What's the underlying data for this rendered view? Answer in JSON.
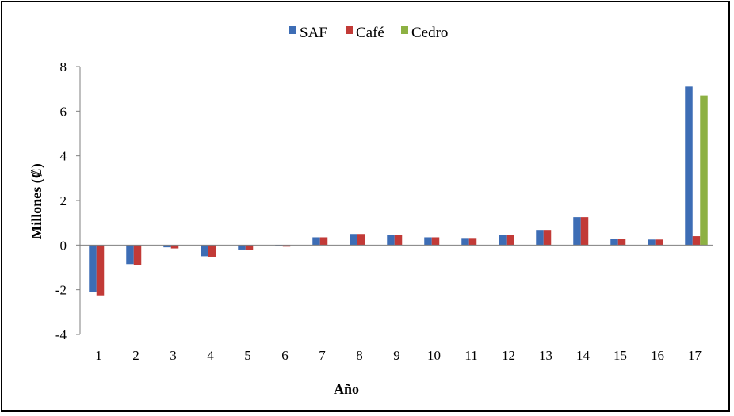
{
  "chart_data": {
    "type": "bar",
    "xlabel": "Año",
    "ylabel": "Millones (₡)",
    "ylim": [
      -4,
      8
    ],
    "yticks": [
      -4,
      -2,
      0,
      2,
      4,
      6,
      8
    ],
    "grid": false,
    "legend_position": "top",
    "categories": [
      "1",
      "2",
      "3",
      "4",
      "5",
      "6",
      "7",
      "8",
      "9",
      "10",
      "11",
      "12",
      "13",
      "14",
      "15",
      "16",
      "17"
    ],
    "series": [
      {
        "name": "SAF",
        "color": "#3d6db5",
        "values": [
          -2.1,
          -0.85,
          -0.1,
          -0.5,
          -0.2,
          -0.05,
          0.35,
          0.5,
          0.47,
          0.35,
          0.32,
          0.46,
          0.68,
          1.25,
          0.28,
          0.25,
          7.1
        ]
      },
      {
        "name": "Café",
        "color": "#c23a37",
        "values": [
          -2.25,
          -0.9,
          -0.15,
          -0.52,
          -0.22,
          -0.07,
          0.35,
          0.5,
          0.47,
          0.35,
          0.32,
          0.46,
          0.68,
          1.25,
          0.28,
          0.25,
          0.4
        ]
      },
      {
        "name": "Cedro",
        "color": "#8db143",
        "values": [
          0,
          0,
          0,
          0,
          0,
          0,
          0,
          0,
          0,
          0,
          0,
          0,
          0,
          0,
          0,
          0,
          6.7
        ]
      }
    ]
  }
}
